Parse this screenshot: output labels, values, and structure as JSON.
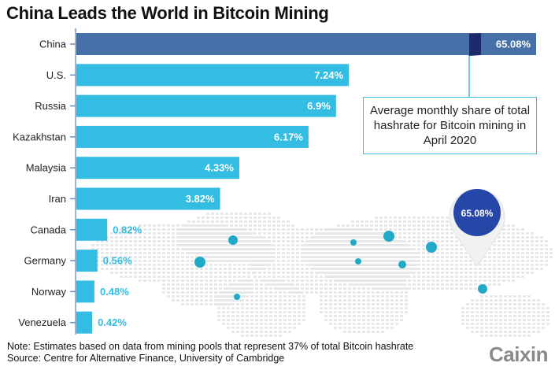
{
  "title": "China Leads the World in Bitcoin Mining",
  "annotation": "Average monthly share of total hashrate for Bitcoin mining in April 2020",
  "map_pin_label": "65.08%",
  "note_lines": [
    "Note: Estimates based on data from mining pools that represent 37% of total Bitcoin hashrate",
    "Source: Centre for Alternative Finance, University of Cambridge"
  ],
  "logo": "Caixin",
  "colors": {
    "china": "#4570a8",
    "other": "#33bde3",
    "break": "#1e2a6e",
    "pin": "#2747a8"
  },
  "chart_data": {
    "type": "bar",
    "orientation": "horizontal",
    "title": "China Leads the World in Bitcoin Mining",
    "xlabel": "",
    "ylabel": "",
    "unit": "% of total hashrate",
    "axis_break": true,
    "categories": [
      "China",
      "U.S.",
      "Russia",
      "Kazakhstan",
      "Malaysia",
      "Iran",
      "Canada",
      "Germany",
      "Norway",
      "Venezuela"
    ],
    "values": [
      65.08,
      7.24,
      6.9,
      6.17,
      4.33,
      3.82,
      0.82,
      0.56,
      0.48,
      0.42
    ],
    "labels": [
      "65.08%",
      "7.24%",
      "6.9%",
      "6.17%",
      "4.33%",
      "3.82%",
      "0.82%",
      "0.56%",
      "0.48%",
      "0.42%"
    ]
  }
}
